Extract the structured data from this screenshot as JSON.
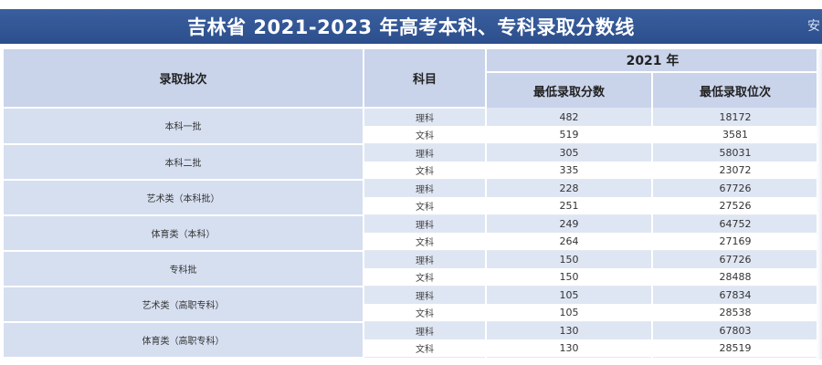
{
  "title": "吉林省 2021-2023  年高考本科、专科录取分数线",
  "title_edge": "安",
  "headers": {
    "batch": "录取批次",
    "subject": "科目",
    "year": "2021 年",
    "min_score": "最低录取分数",
    "min_rank": "最低录取位次"
  },
  "batches": [
    {
      "name": "本科一批",
      "rows": [
        {
          "subject": "理科",
          "score": "482",
          "rank": "18172"
        },
        {
          "subject": "文科",
          "score": "519",
          "rank": "3581"
        }
      ]
    },
    {
      "name": "本科二批",
      "rows": [
        {
          "subject": "理科",
          "score": "305",
          "rank": "58031"
        },
        {
          "subject": "文科",
          "score": "335",
          "rank": "23072"
        }
      ]
    },
    {
      "name": "艺术类（本科批）",
      "rows": [
        {
          "subject": "理科",
          "score": "228",
          "rank": "67726"
        },
        {
          "subject": "文科",
          "score": "251",
          "rank": "27526"
        }
      ]
    },
    {
      "name": "体育类（本科）",
      "rows": [
        {
          "subject": "理科",
          "score": "249",
          "rank": "64752"
        },
        {
          "subject": "文科",
          "score": "264",
          "rank": "27169"
        }
      ]
    },
    {
      "name": "专科批",
      "rows": [
        {
          "subject": "理科",
          "score": "150",
          "rank": "67726"
        },
        {
          "subject": "文科",
          "score": "150",
          "rank": "28488"
        }
      ]
    },
    {
      "name": "艺术类（高职专科）",
      "rows": [
        {
          "subject": "理科",
          "score": "105",
          "rank": "67834"
        },
        {
          "subject": "文科",
          "score": "105",
          "rank": "28538"
        }
      ]
    },
    {
      "name": "体育类（高职专科）",
      "rows": [
        {
          "subject": "理科",
          "score": "130",
          "rank": "67803"
        },
        {
          "subject": "文科",
          "score": "130",
          "rank": "28519"
        }
      ]
    }
  ]
}
